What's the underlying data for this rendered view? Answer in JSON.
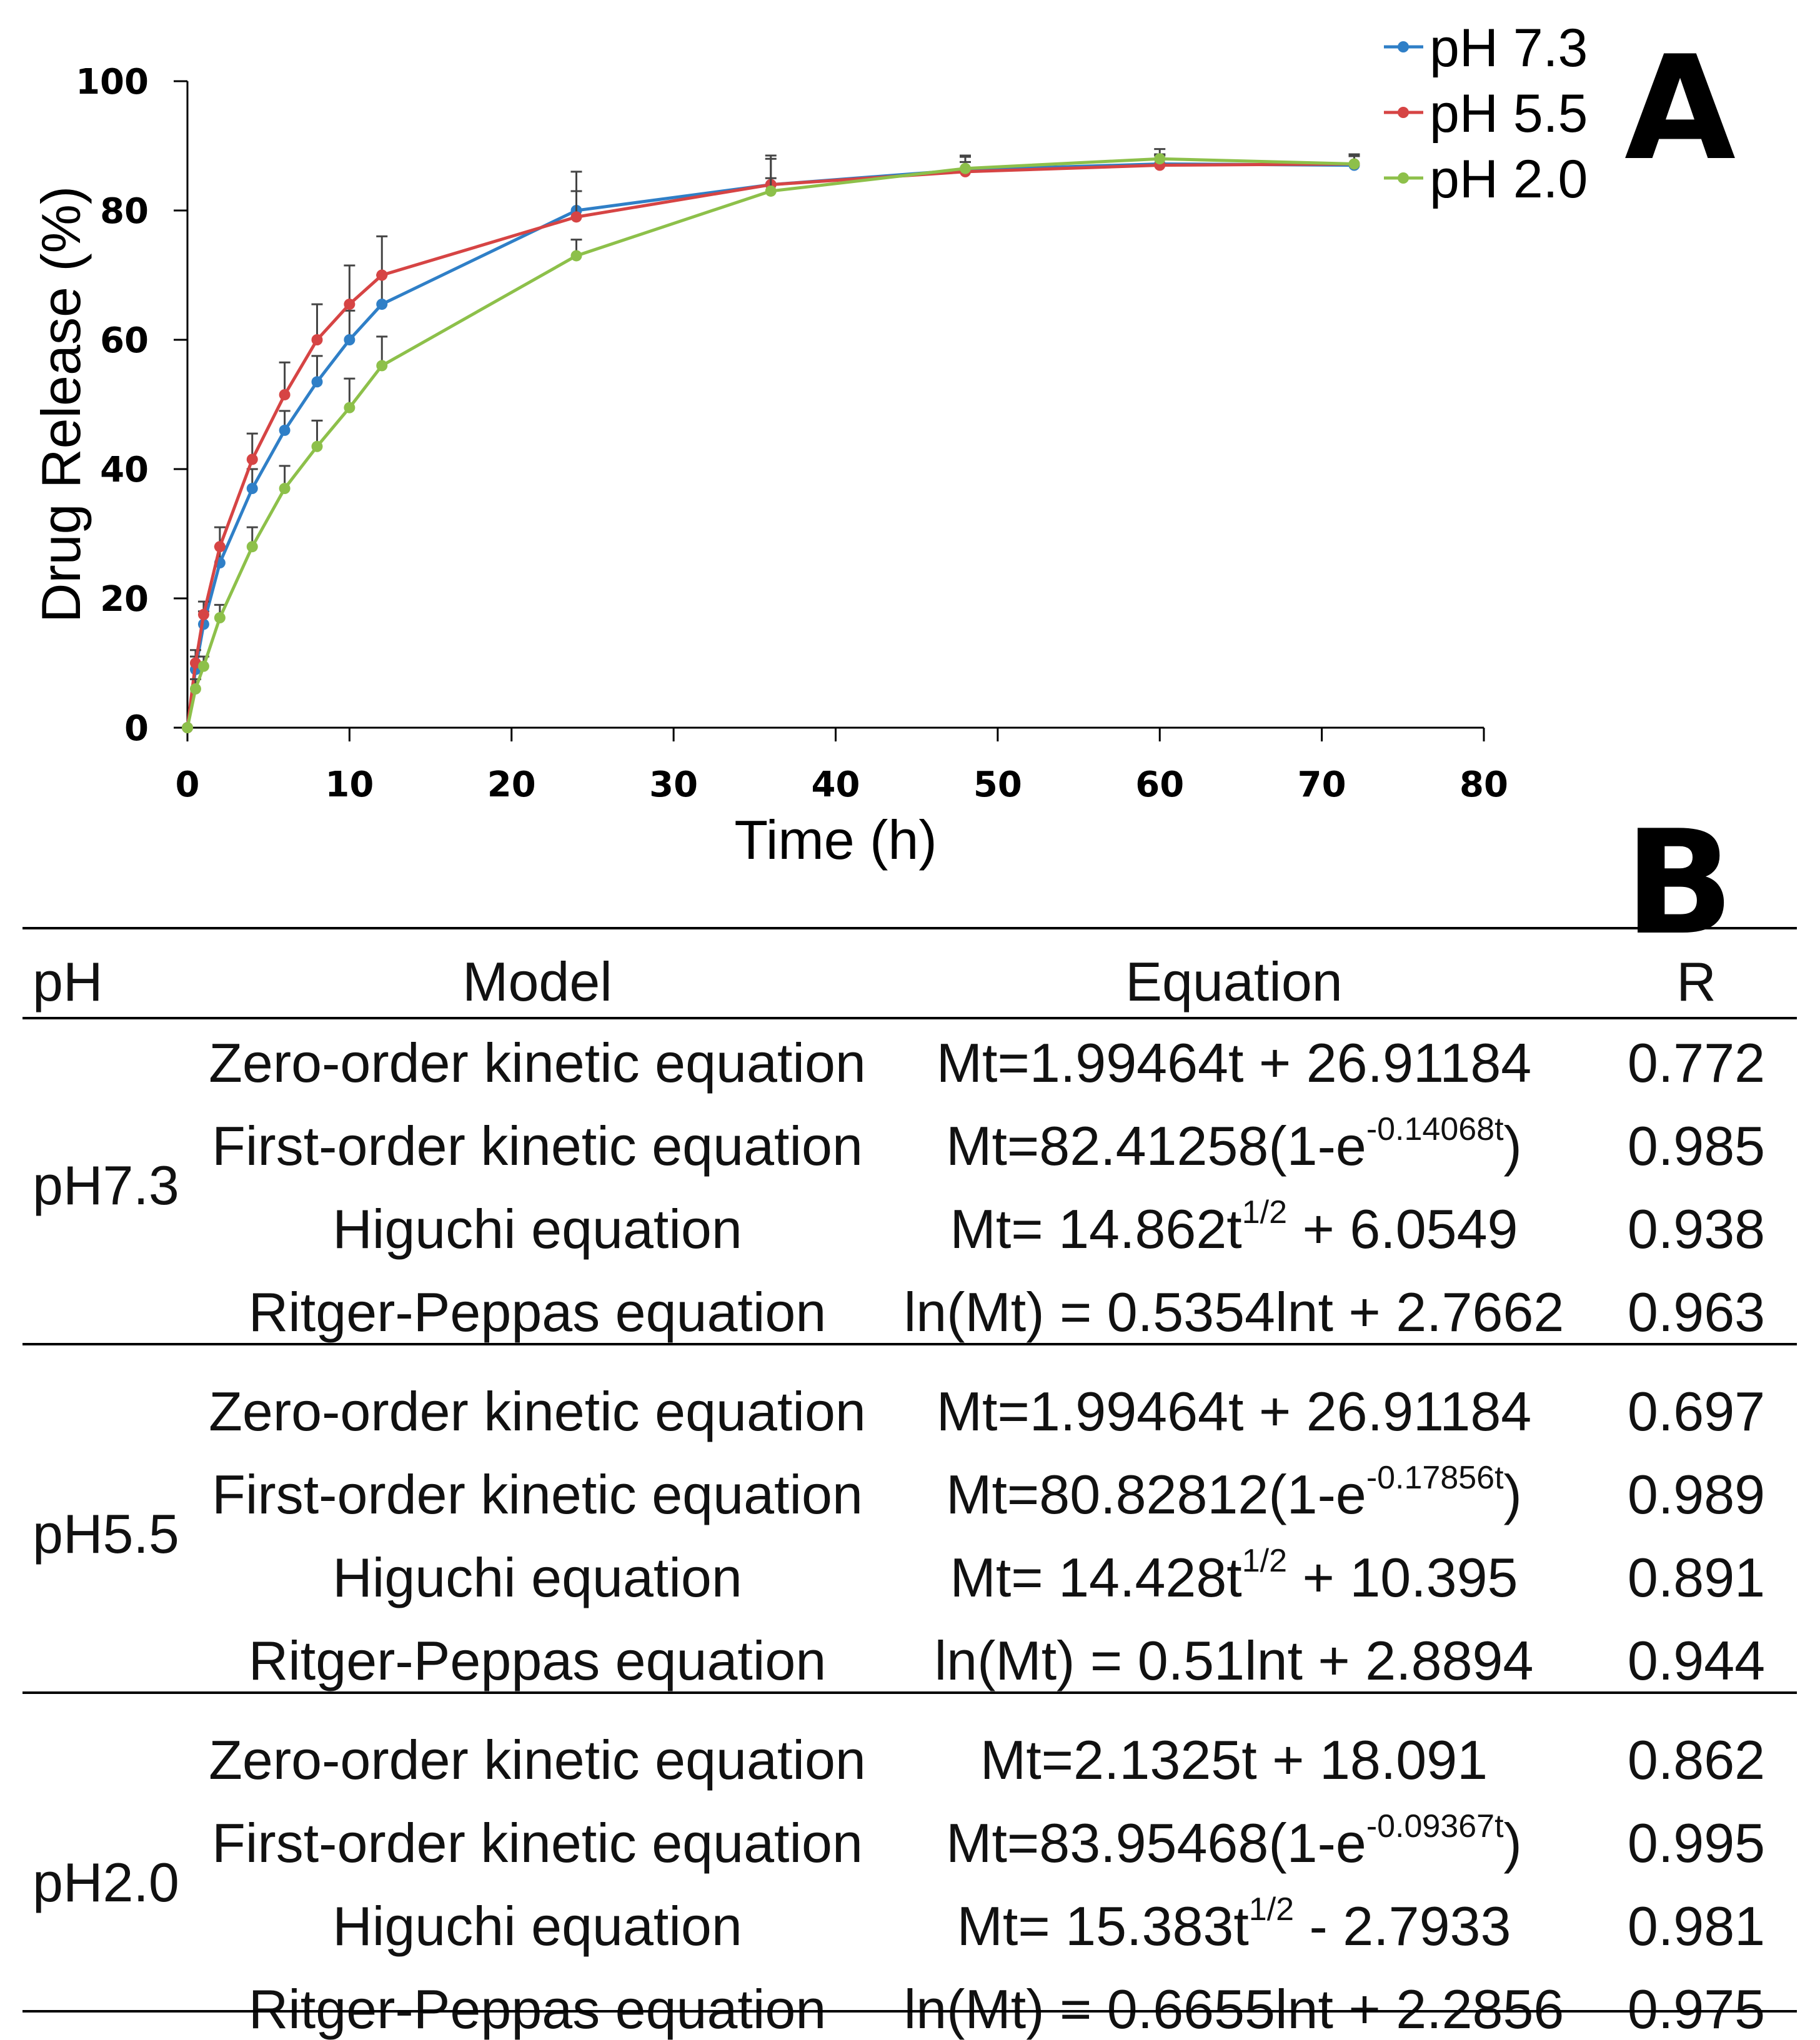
{
  "chart_data": {
    "type": "line",
    "title": "",
    "panel_label": "A",
    "xlabel": "Time (h)",
    "ylabel": "Drug Release (%)",
    "xlim": [
      0,
      80
    ],
    "ylim": [
      0,
      100
    ],
    "xticks": [
      "0",
      "10",
      "20",
      "30",
      "40",
      "50",
      "60",
      "70",
      "80"
    ],
    "yticks": [
      "0",
      "20",
      "40",
      "60",
      "80",
      "100"
    ],
    "legend_position": "top-right",
    "x": [
      0,
      0.5,
      1,
      2,
      4,
      6,
      8,
      10,
      12,
      24,
      36,
      48,
      60,
      72
    ],
    "series": [
      {
        "name": "pH 7.3",
        "color": "#2f7fc7",
        "values": [
          0,
          9,
          16,
          25.5,
          37,
          46,
          53.5,
          60,
          65.5,
          80,
          84,
          86.3,
          87.2,
          87
        ],
        "errors": [
          0,
          2,
          2,
          2.5,
          3,
          3,
          4,
          4.5,
          4.5,
          6,
          4.5,
          2,
          1.5,
          1.5
        ]
      },
      {
        "name": "pH 5.5",
        "color": "#d64444",
        "values": [
          0,
          10,
          17.5,
          28,
          41.5,
          51.5,
          60,
          65.5,
          70,
          79,
          84,
          86,
          87,
          87.2
        ],
        "errors": [
          0,
          2,
          2,
          3,
          4,
          5,
          5.5,
          6,
          6,
          4,
          4,
          1.5,
          1.5,
          1.2
        ]
      },
      {
        "name": "pH 2.0",
        "color": "#8dc04a",
        "values": [
          0,
          6,
          9.5,
          17,
          28,
          37,
          43.5,
          49.5,
          56,
          73,
          83,
          86.5,
          88,
          87.2
        ],
        "errors": [
          0,
          1.5,
          1.5,
          2,
          3,
          3.5,
          4,
          4.5,
          4.5,
          2.5,
          2,
          2,
          1.5,
          1.5
        ]
      }
    ]
  },
  "table": {
    "panel_label": "B",
    "headers": {
      "ph": "pH",
      "model": "Model",
      "equation": "Equation",
      "r": "R"
    },
    "groups": [
      {
        "ph": "pH7.3",
        "rows": [
          {
            "model": "Zero-order kinetic equation",
            "eq_main": "Mt=1.99464t + 26.91184",
            "eq_sup": "",
            "eq_tail": "",
            "r": "0.772"
          },
          {
            "model": "First-order kinetic equation",
            "eq_main": "Mt=82.41258(1-e",
            "eq_sup": "-0.14068t",
            "eq_tail": ")",
            "r": "0.985"
          },
          {
            "model": "Higuchi equation",
            "eq_main": "Mt= 14.862t",
            "eq_sup": "1/2",
            "eq_tail": " + 6.0549",
            "r": "0.938"
          },
          {
            "model": "Ritger-Peppas equation",
            "eq_main": "ln(Mt) = 0.5354lnt + 2.7662",
            "eq_sup": "",
            "eq_tail": "",
            "r": "0.963"
          }
        ]
      },
      {
        "ph": "pH5.5",
        "rows": [
          {
            "model": "Zero-order kinetic equation",
            "eq_main": "Mt=1.99464t + 26.91184",
            "eq_sup": "",
            "eq_tail": "",
            "r": "0.697"
          },
          {
            "model": "First-order kinetic equation",
            "eq_main": "Mt=80.82812(1-e",
            "eq_sup": "-0.17856t",
            "eq_tail": ")",
            "r": "0.989"
          },
          {
            "model": "Higuchi equation",
            "eq_main": "Mt= 14.428t",
            "eq_sup": "1/2",
            "eq_tail": " + 10.395",
            "r": "0.891"
          },
          {
            "model": "Ritger-Peppas equation",
            "eq_main": "ln(Mt) = 0.51lnt + 2.8894",
            "eq_sup": "",
            "eq_tail": "",
            "r": "0.944"
          }
        ]
      },
      {
        "ph": "pH2.0",
        "rows": [
          {
            "model": "Zero-order kinetic equation",
            "eq_main": "Mt=2.1325t + 18.091",
            "eq_sup": "",
            "eq_tail": "",
            "r": "0.862"
          },
          {
            "model": "First-order kinetic equation",
            "eq_main": "Mt=83.95468(1-e",
            "eq_sup": "-0.09367t",
            "eq_tail": ")",
            "r": "0.995"
          },
          {
            "model": "Higuchi equation",
            "eq_main": "Mt= 15.383t",
            "eq_sup": "1/2",
            "eq_tail": " - 2.7933",
            "r": "0.981"
          },
          {
            "model": "Ritger-Peppas equation",
            "eq_main": "ln(Mt) = 0.6655lnt + 2.2856",
            "eq_sup": "",
            "eq_tail": "",
            "r": "0.975"
          }
        ]
      }
    ]
  }
}
